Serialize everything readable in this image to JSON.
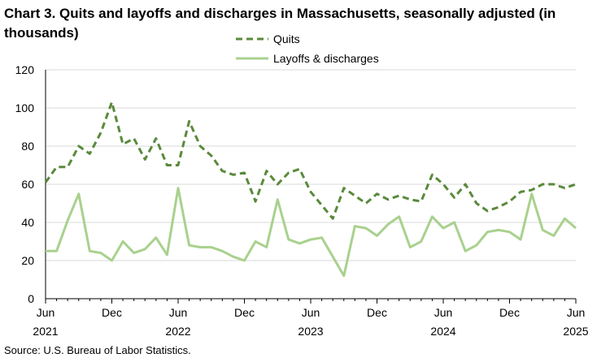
{
  "chart_data": {
    "type": "line",
    "title": "Chart 3. Quits and layoffs and discharges in Massachusetts, seasonally adjusted (in thousands)",
    "source": "Source: U.S. Bureau of Labor Statistics.",
    "ylim": [
      0,
      120
    ],
    "yticks": [
      "0",
      "20",
      "40",
      "60",
      "80",
      "100",
      "120"
    ],
    "xticks": [
      {
        "index": 0,
        "month": "Jun",
        "year": "2021"
      },
      {
        "index": 6,
        "month": "Dec",
        "year": ""
      },
      {
        "index": 12,
        "month": "Jun",
        "year": "2022"
      },
      {
        "index": 18,
        "month": "Dec",
        "year": ""
      },
      {
        "index": 24,
        "month": "Jun",
        "year": "2023"
      },
      {
        "index": 30,
        "month": "Dec",
        "year": ""
      },
      {
        "index": 36,
        "month": "Jun",
        "year": "2024"
      },
      {
        "index": 42,
        "month": "Dec",
        "year": ""
      },
      {
        "index": 48,
        "month": "Jun",
        "year": "2025"
      }
    ],
    "legend_position": "top-center",
    "grid": "horizontal",
    "series": [
      {
        "name": "Quits",
        "color": "#5a8a3c",
        "style": "dashed",
        "values": [
          61,
          69,
          69,
          80,
          76,
          87,
          103,
          81,
          84,
          73,
          84,
          70,
          70,
          93,
          80,
          75,
          67,
          65,
          66,
          51,
          67,
          60,
          66,
          68,
          56,
          49,
          42,
          58,
          54,
          50,
          55,
          52,
          54,
          52,
          51,
          65,
          60,
          53,
          60,
          50,
          46,
          48,
          51,
          56,
          57,
          60,
          60,
          58,
          60
        ]
      },
      {
        "name": "Layoffs & discharges",
        "color": "#a9d18e",
        "style": "solid",
        "values": [
          25,
          25,
          41,
          55,
          25,
          24,
          20,
          30,
          24,
          26,
          32,
          23,
          58,
          28,
          27,
          27,
          25,
          22,
          20,
          30,
          27,
          52,
          31,
          29,
          31,
          32,
          22,
          12,
          38,
          37,
          33,
          39,
          43,
          27,
          30,
          43,
          37,
          40,
          25,
          28,
          35,
          36,
          35,
          31,
          55,
          36,
          33,
          42,
          37
        ]
      }
    ]
  }
}
